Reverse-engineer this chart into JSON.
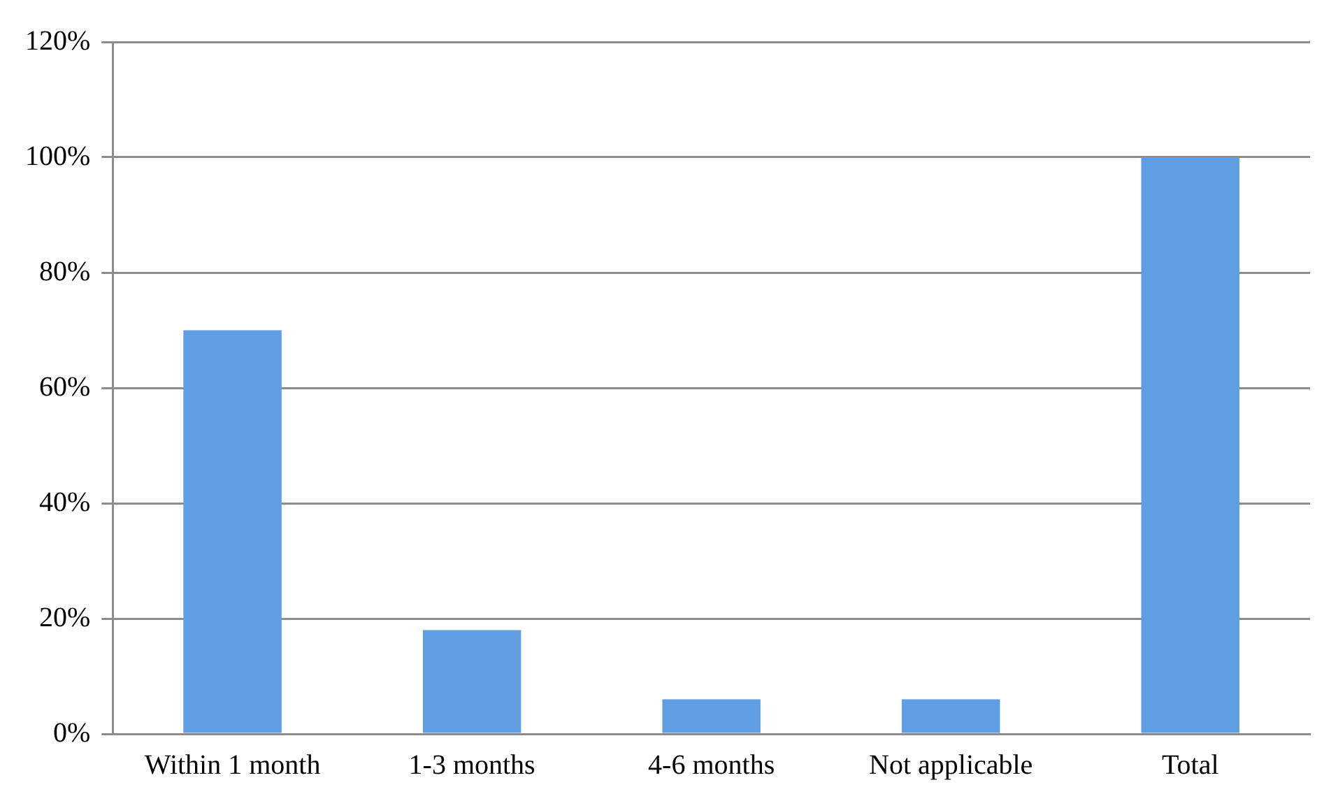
{
  "chart_data": {
    "type": "bar",
    "categories": [
      "Within 1 month",
      "1-3 months",
      "4-6 months",
      "Not applicable",
      "Total"
    ],
    "values": [
      70,
      18,
      6,
      6,
      100
    ],
    "color": "#5f9ee3",
    "ylim": [
      0,
      120
    ],
    "yticks": [
      {
        "value": 0,
        "label": "0%"
      },
      {
        "value": 20,
        "label": "20%"
      },
      {
        "value": 40,
        "label": "40%"
      },
      {
        "value": 60,
        "label": "60%"
      },
      {
        "value": 80,
        "label": "80%"
      },
      {
        "value": 100,
        "label": "100%"
      },
      {
        "value": 120,
        "label": "120%"
      }
    ],
    "grid": "y",
    "legend": false
  }
}
